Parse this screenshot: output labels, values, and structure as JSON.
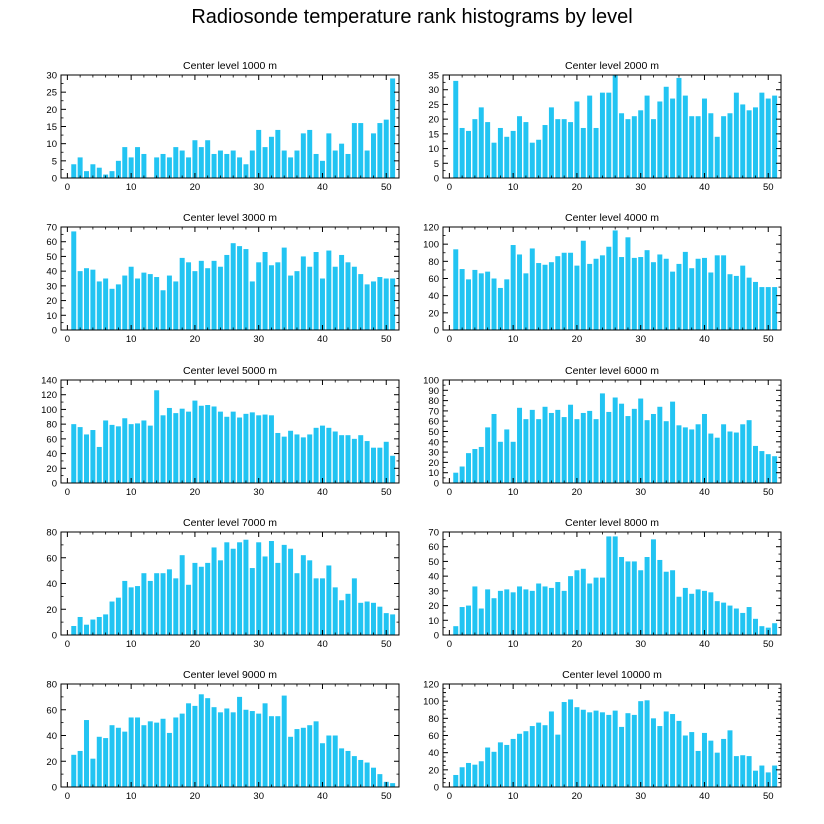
{
  "title": "Radiosonde temperature rank histograms by level",
  "bar_color": "#22c4f2",
  "chart_data": [
    {
      "type": "bar",
      "title": "Center level 1000 m",
      "xlabel": "",
      "ylabel": "",
      "xlim": [
        -1,
        52
      ],
      "ylim": [
        0,
        30
      ],
      "yticks": [
        0,
        5,
        10,
        15,
        20,
        25,
        30
      ],
      "xticks": [
        0,
        10,
        20,
        30,
        40,
        50
      ],
      "values": [
        4,
        6,
        2,
        4,
        3,
        1,
        2,
        5,
        9,
        6,
        9,
        7,
        0,
        6,
        7,
        6,
        9,
        8,
        6,
        11,
        9,
        11,
        7,
        8,
        7,
        8,
        6,
        4,
        8,
        14,
        9,
        12,
        14,
        8,
        6,
        8,
        13,
        14,
        7,
        5,
        13,
        8,
        10,
        7,
        16,
        16,
        8,
        13,
        16,
        17,
        29
      ]
    },
    {
      "type": "bar",
      "title": "Center level 2000 m",
      "xlabel": "",
      "ylabel": "",
      "xlim": [
        -1,
        52
      ],
      "ylim": [
        0,
        35
      ],
      "yticks": [
        0,
        5,
        10,
        15,
        20,
        25,
        30,
        35
      ],
      "xticks": [
        0,
        10,
        20,
        30,
        40,
        50
      ],
      "values": [
        33,
        17,
        16,
        20,
        24,
        19,
        12,
        17,
        14,
        16,
        21,
        19,
        12,
        13,
        18,
        24,
        20,
        20,
        19,
        26,
        17,
        28,
        17,
        29,
        29,
        35,
        22,
        20,
        21,
        23,
        28,
        20,
        26,
        31,
        27,
        34,
        28,
        21,
        21,
        27,
        22,
        14,
        21,
        22,
        29,
        25,
        23,
        24,
        29,
        27,
        28
      ]
    },
    {
      "type": "bar",
      "title": "Center level 3000 m",
      "xlabel": "",
      "ylabel": "",
      "xlim": [
        -1,
        52
      ],
      "ylim": [
        0,
        70
      ],
      "yticks": [
        0,
        10,
        20,
        30,
        40,
        50,
        60,
        70
      ],
      "xticks": [
        0,
        10,
        20,
        30,
        40,
        50
      ],
      "values": [
        67,
        40,
        42,
        41,
        33,
        35,
        28,
        31,
        37,
        43,
        35,
        39,
        38,
        36,
        27,
        37,
        33,
        49,
        46,
        40,
        47,
        42,
        47,
        43,
        51,
        59,
        57,
        55,
        33,
        46,
        53,
        44,
        46,
        56,
        37,
        40,
        50,
        43,
        53,
        35,
        54,
        43,
        51,
        46,
        43,
        38,
        31,
        33,
        36,
        35,
        35
      ]
    },
    {
      "type": "bar",
      "title": "Center level 4000 m",
      "xlabel": "",
      "ylabel": "",
      "xlim": [
        -1,
        52
      ],
      "ylim": [
        0,
        120
      ],
      "yticks": [
        0,
        20,
        40,
        60,
        80,
        100,
        120
      ],
      "xticks": [
        0,
        10,
        20,
        30,
        40,
        50
      ],
      "values": [
        94,
        71,
        59,
        70,
        66,
        68,
        60,
        49,
        59,
        99,
        88,
        66,
        95,
        78,
        76,
        79,
        86,
        90,
        90,
        75,
        104,
        77,
        83,
        87,
        97,
        116,
        85,
        108,
        84,
        85,
        93,
        79,
        88,
        83,
        68,
        77,
        91,
        72,
        83,
        84,
        67,
        87,
        87,
        65,
        63,
        75,
        61,
        56,
        50,
        50,
        50
      ]
    },
    {
      "type": "bar",
      "title": "Center level 5000 m",
      "xlabel": "",
      "ylabel": "",
      "xlim": [
        -1,
        52
      ],
      "ylim": [
        0,
        140
      ],
      "yticks": [
        0,
        20,
        40,
        60,
        80,
        100,
        120,
        140
      ],
      "xticks": [
        0,
        10,
        20,
        30,
        40,
        50
      ],
      "values": [
        80,
        76,
        66,
        72,
        49,
        85,
        79,
        77,
        88,
        80,
        81,
        85,
        78,
        126,
        92,
        102,
        95,
        101,
        97,
        112,
        105,
        106,
        104,
        97,
        90,
        97,
        89,
        94,
        96,
        92,
        93,
        92,
        68,
        63,
        71,
        66,
        62,
        66,
        75,
        78,
        75,
        70,
        65,
        65,
        60,
        65,
        57,
        48,
        48,
        56,
        37
      ]
    },
    {
      "type": "bar",
      "title": "Center level 6000 m",
      "xlabel": "",
      "ylabel": "",
      "xlim": [
        -1,
        52
      ],
      "ylim": [
        0,
        100
      ],
      "yticks": [
        0,
        10,
        20,
        30,
        40,
        50,
        60,
        70,
        80,
        90,
        100
      ],
      "xticks": [
        0,
        10,
        20,
        30,
        40,
        50
      ],
      "values": [
        10,
        16,
        29,
        33,
        35,
        54,
        67,
        40,
        52,
        40,
        73,
        62,
        71,
        62,
        74,
        68,
        71,
        64,
        76,
        62,
        68,
        70,
        62,
        87,
        69,
        83,
        77,
        65,
        72,
        82,
        61,
        67,
        74,
        60,
        79,
        56,
        54,
        52,
        57,
        67,
        48,
        44,
        57,
        50,
        49,
        57,
        61,
        36,
        31,
        28,
        26
      ]
    },
    {
      "type": "bar",
      "title": "Center level 7000 m",
      "xlabel": "",
      "ylabel": "",
      "xlim": [
        -1,
        52
      ],
      "ylim": [
        0,
        80
      ],
      "yticks": [
        0,
        20,
        40,
        60,
        80
      ],
      "xticks": [
        0,
        10,
        20,
        30,
        40,
        50
      ],
      "values": [
        7,
        14,
        8,
        12,
        14,
        16,
        26,
        29,
        42,
        37,
        38,
        48,
        42,
        48,
        48,
        51,
        44,
        62,
        39,
        56,
        53,
        56,
        68,
        58,
        72,
        67,
        72,
        74,
        52,
        72,
        61,
        73,
        56,
        70,
        67,
        48,
        62,
        58,
        44,
        44,
        54,
        37,
        27,
        32,
        44,
        25,
        26,
        25,
        22,
        17,
        16
      ]
    },
    {
      "type": "bar",
      "title": "Center level 8000 m",
      "xlabel": "",
      "ylabel": "",
      "xlim": [
        -1,
        52
      ],
      "ylim": [
        0,
        70
      ],
      "yticks": [
        0,
        10,
        20,
        30,
        40,
        50,
        60,
        70
      ],
      "xticks": [
        0,
        10,
        20,
        30,
        40,
        50
      ],
      "values": [
        6,
        19,
        20,
        33,
        18,
        31,
        25,
        30,
        31,
        29,
        33,
        31,
        30,
        35,
        33,
        32,
        36,
        30,
        40,
        44,
        45,
        35,
        39,
        39,
        67,
        67,
        53,
        50,
        50,
        44,
        53,
        65,
        51,
        43,
        44,
        26,
        32,
        28,
        31,
        30,
        29,
        23,
        22,
        20,
        18,
        15,
        19,
        11,
        6,
        5,
        8
      ]
    },
    {
      "type": "bar",
      "title": "Center level 9000 m",
      "xlabel": "",
      "ylabel": "",
      "xlim": [
        -1,
        52
      ],
      "ylim": [
        0,
        80
      ],
      "yticks": [
        0,
        20,
        40,
        60,
        80
      ],
      "xticks": [
        0,
        10,
        20,
        30,
        40,
        50
      ],
      "values": [
        25,
        28,
        52,
        22,
        39,
        38,
        48,
        46,
        43,
        54,
        54,
        48,
        51,
        50,
        53,
        42,
        54,
        57,
        65,
        63,
        72,
        69,
        62,
        58,
        61,
        58,
        70,
        60,
        59,
        57,
        65,
        55,
        55,
        71,
        39,
        45,
        46,
        48,
        51,
        34,
        40,
        40,
        30,
        28,
        24,
        21,
        19,
        15,
        10,
        4,
        3
      ]
    },
    {
      "type": "bar",
      "title": "Center level 10000 m",
      "xlabel": "",
      "ylabel": "",
      "xlim": [
        -1,
        52
      ],
      "ylim": [
        0,
        120
      ],
      "yticks": [
        0,
        10,
        20,
        30,
        40,
        50,
        60,
        70,
        80,
        90,
        100,
        110,
        120
      ],
      "ytick_labels": [
        0,
        20,
        40,
        60,
        80,
        100,
        120
      ],
      "xticks": [
        0,
        10,
        20,
        30,
        40,
        50
      ],
      "values": [
        14,
        23,
        28,
        26,
        30,
        46,
        41,
        52,
        49,
        56,
        62,
        65,
        71,
        75,
        72,
        88,
        61,
        99,
        102,
        93,
        90,
        87,
        89,
        87,
        84,
        89,
        70,
        86,
        84,
        100,
        101,
        80,
        71,
        88,
        85,
        77,
        60,
        64,
        42,
        63,
        54,
        40,
        56,
        66,
        36,
        37,
        36,
        19,
        25,
        17,
        25
      ]
    }
  ]
}
